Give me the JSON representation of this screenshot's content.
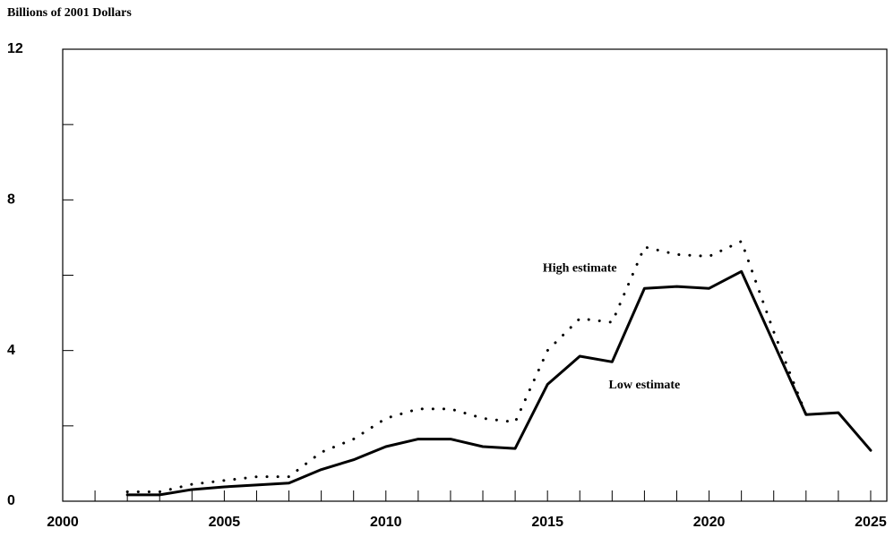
{
  "chart_data": {
    "type": "line",
    "y_axis_label": "Billions of 2001 Dollars",
    "x": [
      2002,
      2003,
      2004,
      2005,
      2006,
      2007,
      2008,
      2009,
      2010,
      2011,
      2012,
      2013,
      2014,
      2015,
      2016,
      2017,
      2018,
      2019,
      2020,
      2021,
      2022,
      2023,
      2024,
      2025
    ],
    "series": [
      {
        "name": "High estimate",
        "color": "#000000",
        "style": "dotted",
        "values": [
          0.25,
          0.25,
          0.45,
          0.55,
          0.65,
          0.65,
          1.3,
          1.65,
          2.2,
          2.45,
          2.45,
          2.2,
          2.1,
          4.0,
          4.85,
          4.75,
          6.75,
          6.55,
          6.5,
          6.9,
          4.5,
          2.3,
          null,
          null
        ]
      },
      {
        "name": "Low estimate",
        "color": "#000000",
        "style": "solid",
        "values": [
          0.17,
          0.17,
          0.31,
          0.38,
          0.43,
          0.48,
          0.84,
          1.1,
          1.45,
          1.65,
          1.65,
          1.45,
          1.4,
          3.1,
          3.85,
          3.7,
          5.65,
          5.7,
          5.65,
          6.1,
          4.2,
          2.3,
          2.35,
          1.35
        ]
      }
    ],
    "xlim": [
      2000,
      2025.5
    ],
    "xticks": [
      2000,
      2005,
      2010,
      2015,
      2020,
      2025
    ],
    "ylim": [
      0,
      12
    ],
    "yticks": [
      0,
      4,
      8,
      12
    ]
  }
}
